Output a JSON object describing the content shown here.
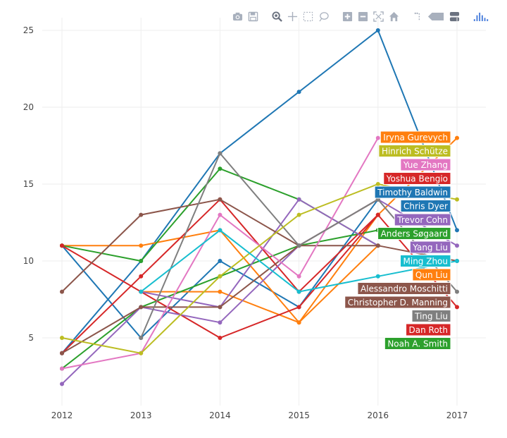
{
  "toolbar": {
    "buttons": [
      {
        "name": "camera-icon",
        "title": "Download plot as png"
      },
      {
        "name": "save-icon",
        "title": "Save"
      },
      {
        "name": "zoom-icon",
        "title": "Zoom"
      },
      {
        "name": "pan-icon",
        "title": "Pan"
      },
      {
        "name": "box-select-icon",
        "title": "Box Select"
      },
      {
        "name": "lasso-select-icon",
        "title": "Lasso Select"
      },
      {
        "name": "zoom-in-icon",
        "title": "Zoom in"
      },
      {
        "name": "zoom-out-icon",
        "title": "Zoom out"
      },
      {
        "name": "autoscale-icon",
        "title": "Autoscale"
      },
      {
        "name": "home-icon",
        "title": "Reset axes"
      },
      {
        "name": "spike-lines-icon",
        "title": "Toggle Spike Lines"
      },
      {
        "name": "hover-closest-icon",
        "title": "Show closest data on hover"
      },
      {
        "name": "hover-compare-icon",
        "title": "Compare data on hover"
      },
      {
        "name": "plotly-logo-icon",
        "title": "Produced with Plotly"
      }
    ]
  },
  "chart_data": {
    "type": "line",
    "title": "",
    "xlabel": "",
    "ylabel": "",
    "x": [
      2012,
      2013,
      2014,
      2015,
      2016,
      2017
    ],
    "x_tick_labels": [
      "2012",
      "2013",
      "2014",
      "2015",
      "2016",
      "2017"
    ],
    "y_ticks": [
      5,
      10,
      15,
      20,
      25
    ],
    "y_tick_labels": [
      "5",
      "10",
      "15",
      "20",
      "25"
    ],
    "xlim": [
      2011.85,
      2017.15
    ],
    "ylim": [
      0.5,
      26
    ],
    "grid": true,
    "series": [
      {
        "name": "Timothy Baldwin",
        "color": "#1f77b4",
        "values": [
          4,
          10,
          17,
          21,
          25,
          12
        ]
      },
      {
        "name": "Chris Dyer",
        "color": "#1f77b4",
        "values": [
          11,
          5,
          10,
          7,
          14,
          null
        ]
      },
      {
        "name": "Iryna Gurevych",
        "color": "#ff7f0e",
        "values": [
          11,
          11,
          12,
          6,
          13,
          18
        ]
      },
      {
        "name": "Qun Liu",
        "color": "#ff7f0e",
        "values": [
          null,
          8,
          8,
          6,
          11,
          null
        ]
      },
      {
        "name": "Anders Søgaard",
        "color": "#2ca02c",
        "values": [
          11,
          10,
          16,
          14,
          11,
          null
        ]
      },
      {
        "name": "Noah A. Smith",
        "color": "#2ca02c",
        "values": [
          3,
          7,
          9,
          11,
          12,
          null
        ]
      },
      {
        "name": "Yoshua Bengio",
        "color": "#d62728",
        "values": [
          4,
          9,
          14,
          8,
          13,
          null
        ]
      },
      {
        "name": "Dan Roth",
        "color": "#d62728",
        "values": [
          11,
          8,
          5,
          7,
          13,
          7
        ]
      },
      {
        "name": "Trevor Cohn",
        "color": "#9467bd",
        "values": [
          2,
          7,
          6,
          11,
          14,
          11
        ]
      },
      {
        "name": "Yang Liu",
        "color": "#9467bd",
        "values": [
          null,
          8,
          7,
          14,
          11,
          null
        ]
      },
      {
        "name": "Christopher D. Manning",
        "color": "#8c564b",
        "values": [
          8,
          13,
          14,
          11,
          11,
          10
        ]
      },
      {
        "name": "Alessandro Moschitti",
        "color": "#8c564b",
        "values": [
          4,
          7,
          7,
          11,
          14,
          null
        ]
      },
      {
        "name": "Yue Zhang",
        "color": "#e377c2",
        "values": [
          3,
          4,
          13,
          9,
          18,
          null
        ]
      },
      {
        "name": "Ting Liu",
        "color": "#7f7f7f",
        "values": [
          null,
          5,
          17,
          11,
          14,
          8
        ]
      },
      {
        "name": "Hinrich Schütze",
        "color": "#bcbd22",
        "values": [
          5,
          4,
          9,
          13,
          15,
          14
        ]
      },
      {
        "name": "Ming Zhou",
        "color": "#17becf",
        "values": [
          null,
          8,
          12,
          8,
          9,
          10
        ]
      }
    ],
    "hover_labels": [
      {
        "text": "Iryna Gurevych",
        "color": "#ff7f0e",
        "text_color": "#444444"
      },
      {
        "text": "Hinrich Schütze",
        "color": "#bcbd22",
        "text_color": "#444444"
      },
      {
        "text": "Yue Zhang",
        "color": "#e377c2",
        "text_color": "#444444"
      },
      {
        "text": "Yoshua Bengio",
        "color": "#d62728",
        "text_color": "#ffffff"
      },
      {
        "text": "Timothy Baldwin",
        "color": "#1f77b4",
        "text_color": "#ffffff"
      },
      {
        "text": "Chris Dyer",
        "color": "#1f77b4",
        "text_color": "#ffffff"
      },
      {
        "text": "Trevor Cohn",
        "color": "#9467bd",
        "text_color": "#ffffff"
      },
      {
        "text": "Anders Søgaard",
        "color": "#2ca02c",
        "text_color": "#ffffff"
      },
      {
        "text": "Yang Liu",
        "color": "#9467bd",
        "text_color": "#ffffff"
      },
      {
        "text": "Ming Zhou",
        "color": "#17becf",
        "text_color": "#444444"
      },
      {
        "text": "Qun Liu",
        "color": "#ff7f0e",
        "text_color": "#444444"
      },
      {
        "text": "Alessandro Moschitti",
        "color": "#8c564b",
        "text_color": "#ffffff"
      },
      {
        "text": "Christopher D. Manning",
        "color": "#8c564b",
        "text_color": "#ffffff"
      },
      {
        "text": "Ting Liu",
        "color": "#7f7f7f",
        "text_color": "#ffffff"
      },
      {
        "text": "Dan Roth",
        "color": "#d62728",
        "text_color": "#ffffff"
      },
      {
        "text": "Noah A. Smith",
        "color": "#2ca02c",
        "text_color": "#ffffff"
      }
    ]
  }
}
